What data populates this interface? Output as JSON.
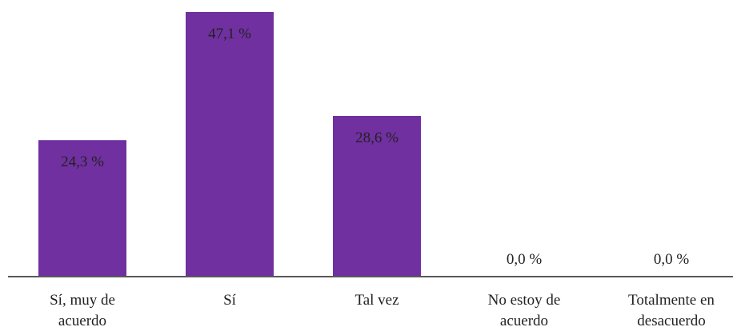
{
  "chart_data": {
    "type": "bar",
    "categories": [
      [
        "Sí, muy de",
        "acuerdo"
      ],
      [
        "Sí"
      ],
      [
        "Tal vez"
      ],
      [
        "No estoy de",
        "acuerdo"
      ],
      [
        "Totalmente en",
        "desacuerdo"
      ]
    ],
    "values": [
      24.3,
      47.1,
      28.6,
      0.0,
      0.0
    ],
    "data_labels": [
      "24,3 %",
      "47,1 %",
      "28,6 %",
      "0,0 %",
      "0,0 %"
    ],
    "ylim": [
      0,
      47.1
    ],
    "grid": false,
    "legend": "none",
    "bar_color": "#7030A0",
    "axis_color": "#595959"
  }
}
